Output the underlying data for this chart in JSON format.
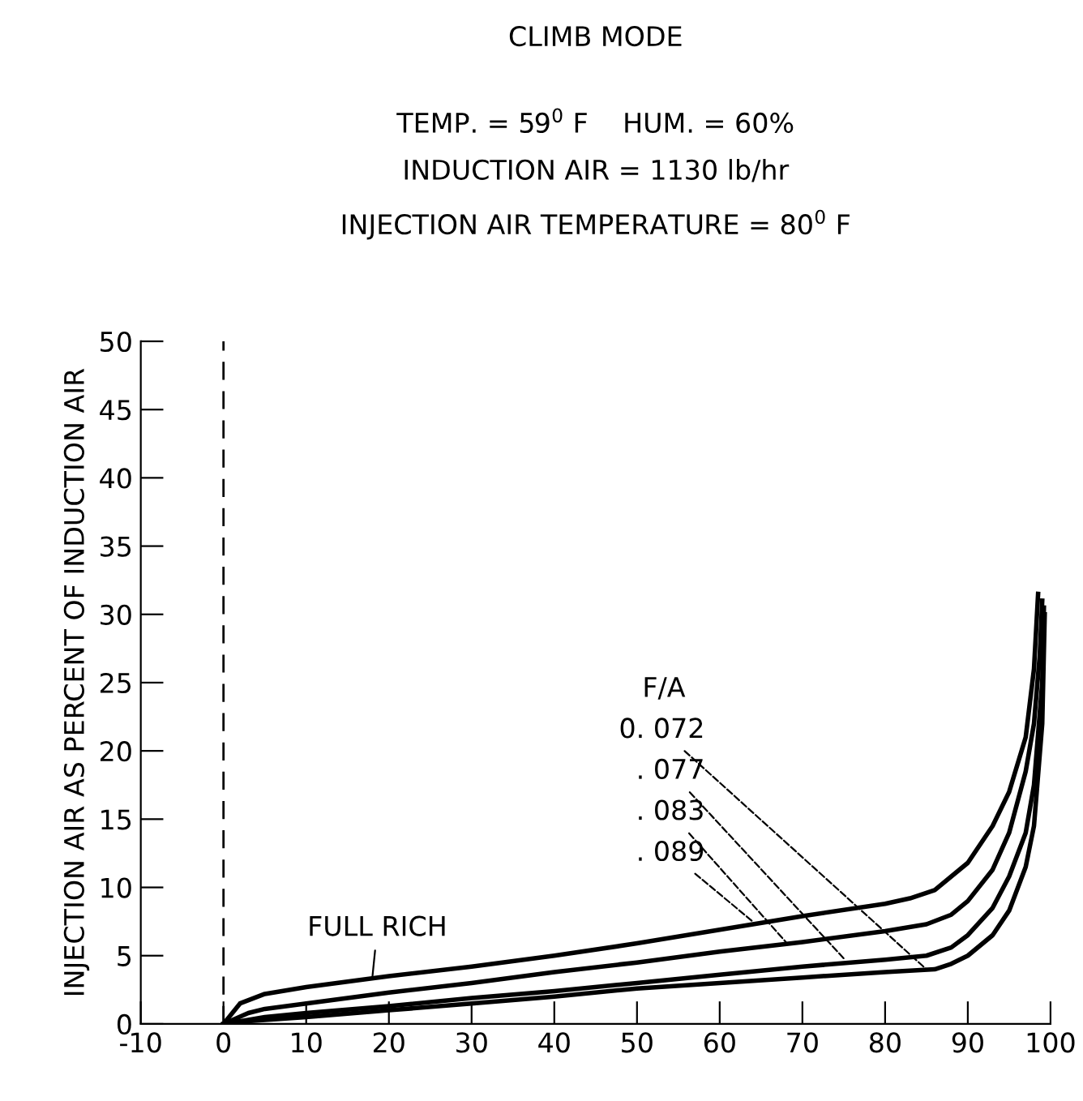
{
  "chart_data": {
    "type": "line",
    "title": "CLIMB MODE",
    "subtitle": "TEMP. = 59$^{0}$ F    HUM. = 60%\nINDUCTION AIR = 1130 lb/hr\nINJECTION AIR TEMPERATURE = 80$^{0}$ F",
    "ylabel": "INJECTION AIR AS PERCENT OF INDUCTION AIR",
    "series": [
      {
        "color": "#000000",
        "x": [
          0,
          2,
          5,
          10,
          20,
          30,
          40,
          50,
          60,
          70,
          80,
          83,
          86,
          90,
          93,
          95,
          97,
          98,
          98.5
        ],
        "values": [
          0,
          1.5,
          2.2,
          2.7,
          3.5,
          4.2,
          5.0,
          5.9,
          6.9,
          7.9,
          8.8,
          9.2,
          9.8,
          11.8,
          14.5,
          17,
          21,
          26,
          31.5
        ]
      },
      {
        "color": "#000000",
        "x": [
          0,
          3,
          5,
          10,
          20,
          30,
          40,
          50,
          60,
          70,
          80,
          85,
          88,
          90,
          93,
          95,
          97,
          98,
          98.7,
          99
        ],
        "values": [
          0,
          0.8,
          1.1,
          1.5,
          2.3,
          3.0,
          3.8,
          4.5,
          5.3,
          6.0,
          6.8,
          7.3,
          8.0,
          9.0,
          11.3,
          14,
          18.5,
          22,
          27,
          31
        ]
      },
      {
        "color": "#000000",
        "x": [
          0,
          3,
          5,
          10,
          20,
          30,
          40,
          50,
          60,
          70,
          80,
          85,
          88,
          90,
          93,
          95,
          97,
          98,
          99,
          99.2
        ],
        "values": [
          0,
          0.3,
          0.5,
          0.8,
          1.3,
          1.9,
          2.4,
          3.0,
          3.6,
          4.2,
          4.7,
          5.0,
          5.6,
          6.5,
          8.5,
          10.8,
          14,
          17.5,
          25,
          30.5
        ]
      },
      {
        "color": "#000000",
        "x": [
          0,
          3,
          5,
          10,
          20,
          30,
          40,
          50,
          60,
          70,
          80,
          86,
          88,
          90,
          93,
          95,
          97,
          98,
          99,
          99.3
        ],
        "values": [
          0,
          0.2,
          0.3,
          0.5,
          1.0,
          1.5,
          2.0,
          2.6,
          3.0,
          3.4,
          3.8,
          4.0,
          4.4,
          5.0,
          6.5,
          8.3,
          11.5,
          14.5,
          22,
          30
        ]
      }
    ],
    "annotations": [
      "F/A",
      {
        "text": "0. 072",
        "x": 85,
        "y": 4.0
      },
      {
        "text": ". 077",
        "x": 75,
        "y": 4.8
      },
      {
        "text": ". 083",
        "x": 68,
        "y": 6.0
      },
      {
        "text": ". 089",
        "x": 64,
        "y": 7.5
      },
      {
        "text": "FULL RICH",
        "x": 18,
        "y": 3.4
      }
    ],
    "xlim": [
      -10,
      100
    ],
    "xticks": [
      -10,
      0,
      10,
      20,
      30,
      40,
      50,
      60,
      70,
      80,
      90,
      100
    ],
    "ylim": [
      0,
      50
    ],
    "yticks": [
      0,
      5,
      10,
      15,
      20,
      25,
      30,
      35,
      40,
      45,
      50
    ],
    "ref_lines": [
      {
        "axis": "x",
        "value": 0,
        "line_style": "dashed",
        "color": "#000000"
      }
    ],
    "grid": false,
    "line_style": "solid",
    "marker": "none"
  }
}
